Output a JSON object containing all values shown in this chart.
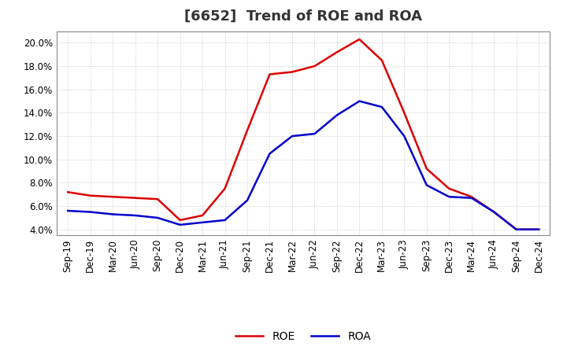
{
  "title": "[6652]  Trend of ROE and ROA",
  "labels": [
    "Sep-19",
    "Dec-19",
    "Mar-20",
    "Jun-20",
    "Sep-20",
    "Dec-20",
    "Mar-21",
    "Jun-21",
    "Sep-21",
    "Dec-21",
    "Mar-22",
    "Jun-22",
    "Sep-22",
    "Dec-22",
    "Mar-23",
    "Jun-23",
    "Sep-23",
    "Dec-23",
    "Mar-24",
    "Jun-24",
    "Sep-24",
    "Dec-24"
  ],
  "roe": [
    7.2,
    6.9,
    6.8,
    6.7,
    6.6,
    4.8,
    5.2,
    7.5,
    12.5,
    17.3,
    17.5,
    18.0,
    19.2,
    20.3,
    18.5,
    14.0,
    9.2,
    7.5,
    6.8,
    5.5,
    4.0,
    4.0
  ],
  "roa": [
    5.6,
    5.5,
    5.3,
    5.2,
    5.0,
    4.4,
    4.6,
    4.8,
    6.5,
    10.5,
    12.0,
    12.2,
    13.8,
    15.0,
    14.5,
    12.0,
    7.8,
    6.8,
    6.7,
    5.5,
    4.0,
    4.0
  ],
  "roe_color": "#dd0000",
  "roa_color": "#0000cc",
  "background_color": "#ffffff",
  "plot_bg_color": "#ffffff",
  "grid_color": "#999999",
  "ylim": [
    3.5,
    21.0
  ],
  "yticks": [
    4.0,
    6.0,
    8.0,
    10.0,
    12.0,
    14.0,
    16.0,
    18.0,
    20.0
  ],
  "line_width": 1.8,
  "title_fontsize": 13,
  "tick_fontsize": 8.5,
  "legend_fontsize": 10
}
